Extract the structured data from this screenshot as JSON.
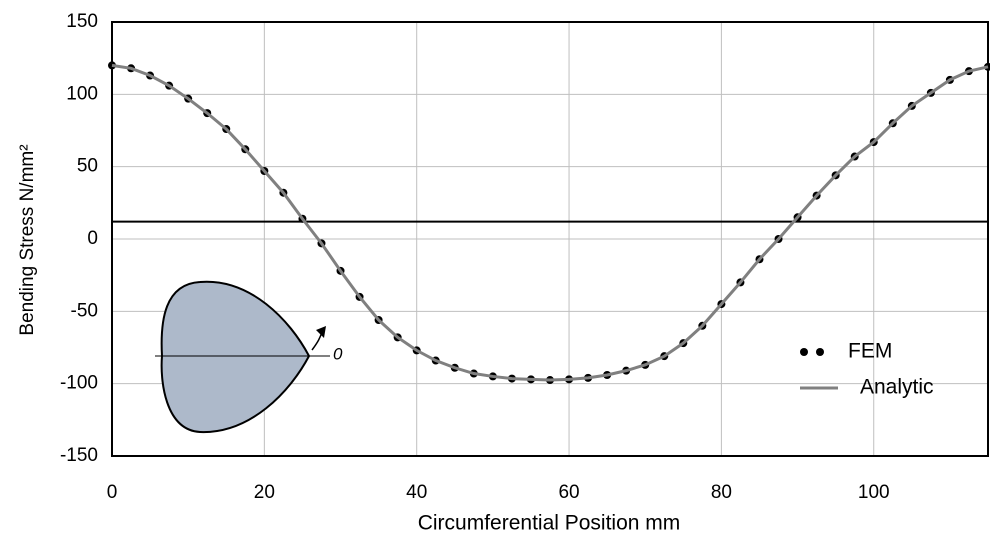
{
  "chart_data": {
    "type": "line",
    "x_label": "Circumferential Position mm",
    "y_label": "Bending Stress N/mm²",
    "x": [
      0,
      2.5,
      5,
      7.5,
      10,
      12.5,
      15,
      17.5,
      20,
      22.5,
      25,
      27.5,
      30,
      32.5,
      35,
      37.5,
      40,
      42.5,
      45,
      47.5,
      50,
      52.5,
      55,
      57.5,
      60,
      62.5,
      65,
      67.5,
      70,
      72.5,
      75,
      77.5,
      80,
      82.5,
      85,
      87.5,
      90,
      92.5,
      95,
      97.5,
      100,
      102.5,
      105,
      107.5,
      110,
      112.5,
      115
    ],
    "series": [
      {
        "name": "FEM",
        "mode": "markers",
        "color": "#000000",
        "values": [
          120,
          118,
          113,
          106,
          97,
          87,
          76,
          62,
          47,
          32,
          14,
          -3,
          -22,
          -40,
          -56,
          -68,
          -77,
          -84,
          -89,
          -93,
          -95,
          -96.5,
          -97,
          -97.5,
          -97,
          -96,
          -94,
          -91,
          -87,
          -81,
          -72,
          -60,
          -45,
          -30,
          -14,
          0,
          15,
          30,
          44,
          57,
          67,
          80,
          92,
          101,
          110,
          116,
          119
        ]
      },
      {
        "name": "Analytic",
        "mode": "line",
        "color": "#808080",
        "values": [
          120,
          118,
          113,
          106,
          97,
          87,
          76,
          62,
          47,
          32,
          14,
          -3,
          -22,
          -40,
          -56,
          -68,
          -77,
          -84,
          -89,
          -93,
          -95,
          -96.5,
          -97,
          -97.5,
          -97,
          -96,
          -94,
          -91,
          -87,
          -81,
          -72,
          -60,
          -45,
          -30,
          -14,
          0,
          15,
          30,
          44,
          57,
          67,
          80,
          92,
          101,
          110,
          116,
          119
        ]
      }
    ],
    "reference_line": 12,
    "inset_label": "0",
    "xlim": [
      0,
      115
    ],
    "xticks": [
      0,
      20,
      40,
      60,
      80,
      100
    ],
    "ylim": [
      -150,
      150
    ],
    "yticks": [
      -150,
      -100,
      -50,
      0,
      50,
      100,
      150
    ],
    "grid": true,
    "legend": "lower right"
  }
}
